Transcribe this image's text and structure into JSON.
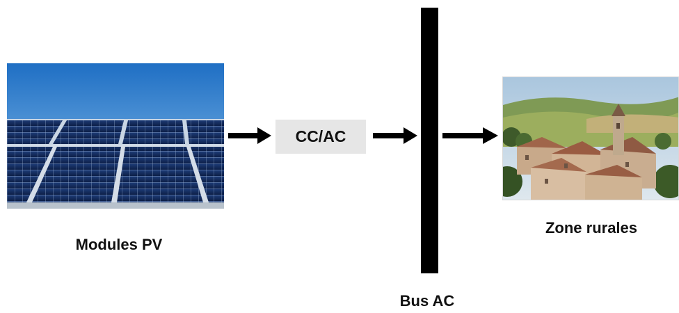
{
  "diagram": {
    "nodes": {
      "source_label": "Modules PV",
      "converter_label": "CC/AC",
      "bus_label": "Bus AC",
      "load_label": "Zone rurales"
    },
    "images": {
      "source": "solar-panel-photo",
      "load": "rural-village-photo"
    },
    "colors": {
      "bus": "#000000",
      "converter_fill": "#e6e6e6",
      "arrow": "#000000"
    }
  }
}
